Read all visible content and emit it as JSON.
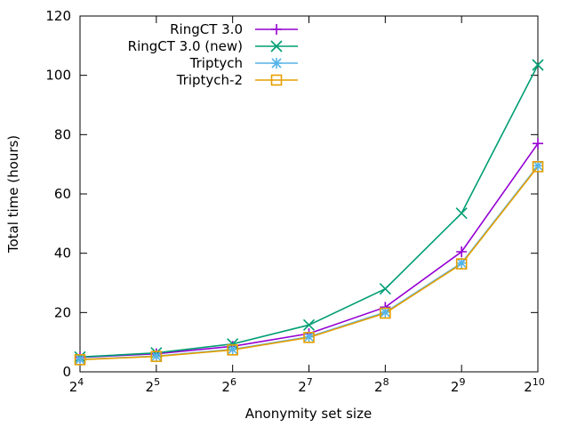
{
  "chart_data": {
    "type": "line",
    "xlabel": "Anonymity set size",
    "ylabel": "Total time (hours)",
    "x_base": "2",
    "x_exponents": [
      "4",
      "5",
      "6",
      "7",
      "8",
      "9",
      "10"
    ],
    "x": [
      16,
      32,
      64,
      128,
      256,
      512,
      1024
    ],
    "x_scale": "log2",
    "ylim": [
      0,
      120
    ],
    "yticks": [
      "0",
      "20",
      "40",
      "60",
      "80",
      "100",
      "120"
    ],
    "grid": false,
    "legend_position": "top-left",
    "series": [
      {
        "name": "RingCT 3.0",
        "color": "#9400d3",
        "marker": "plus",
        "values": [
          4.9,
          6.1,
          8.6,
          12.9,
          21.8,
          40.5,
          77.0
        ]
      },
      {
        "name": "RingCT 3.0 (new)",
        "color": "#009e73",
        "marker": "cross",
        "values": [
          5.0,
          6.4,
          9.4,
          15.8,
          28.0,
          53.5,
          103.5
        ]
      },
      {
        "name": "Triptych",
        "color": "#56b4e9",
        "marker": "star",
        "values": [
          4.2,
          5.3,
          7.6,
          11.8,
          20.1,
          36.7,
          69.5
        ]
      },
      {
        "name": "Triptych-2",
        "color": "#e69f00",
        "marker": "square",
        "values": [
          4.1,
          5.2,
          7.4,
          11.6,
          19.8,
          36.4,
          69.2
        ]
      }
    ]
  }
}
